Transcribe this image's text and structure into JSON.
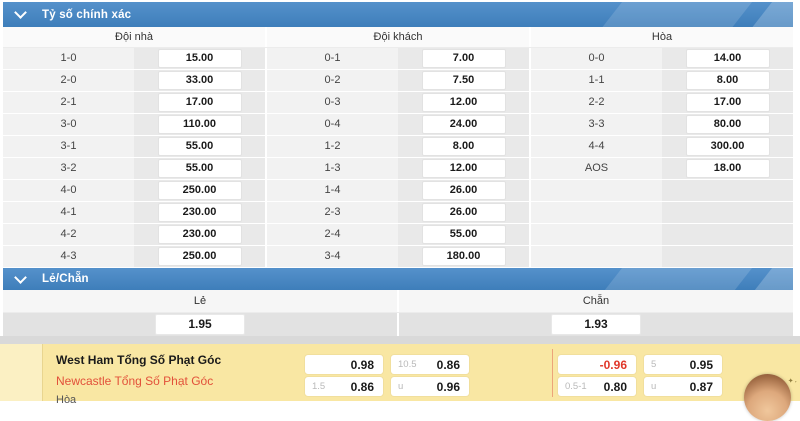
{
  "colors": {
    "header_blue": "#4283c0",
    "panel_yellow": "#f9e7a3",
    "negative_red": "#e0372a",
    "away_team_red": "#e2513a"
  },
  "correct_score": {
    "title": "Tỷ số chính xác",
    "columns": [
      {
        "header": "Đội nhà",
        "rows": [
          {
            "score": "1-0",
            "odds": "15.00"
          },
          {
            "score": "2-0",
            "odds": "33.00"
          },
          {
            "score": "2-1",
            "odds": "17.00"
          },
          {
            "score": "3-0",
            "odds": "110.00"
          },
          {
            "score": "3-1",
            "odds": "55.00"
          },
          {
            "score": "3-2",
            "odds": "55.00"
          },
          {
            "score": "4-0",
            "odds": "250.00"
          },
          {
            "score": "4-1",
            "odds": "230.00"
          },
          {
            "score": "4-2",
            "odds": "230.00"
          },
          {
            "score": "4-3",
            "odds": "250.00"
          }
        ]
      },
      {
        "header": "Đội khách",
        "rows": [
          {
            "score": "0-1",
            "odds": "7.00"
          },
          {
            "score": "0-2",
            "odds": "7.50"
          },
          {
            "score": "0-3",
            "odds": "12.00"
          },
          {
            "score": "0-4",
            "odds": "24.00"
          },
          {
            "score": "1-2",
            "odds": "8.00"
          },
          {
            "score": "1-3",
            "odds": "12.00"
          },
          {
            "score": "1-4",
            "odds": "26.00"
          },
          {
            "score": "2-3",
            "odds": "26.00"
          },
          {
            "score": "2-4",
            "odds": "55.00"
          },
          {
            "score": "3-4",
            "odds": "180.00"
          }
        ]
      },
      {
        "header": "Hòa",
        "rows": [
          {
            "score": "0-0",
            "odds": "14.00"
          },
          {
            "score": "1-1",
            "odds": "8.00"
          },
          {
            "score": "2-2",
            "odds": "17.00"
          },
          {
            "score": "3-3",
            "odds": "80.00"
          },
          {
            "score": "4-4",
            "odds": "300.00"
          },
          {
            "score": "AOS",
            "odds": "18.00"
          }
        ]
      }
    ]
  },
  "odd_even": {
    "title": "Lẻ/Chẵn",
    "options": [
      {
        "label": "Lẻ",
        "odds": "1.95"
      },
      {
        "label": "Chẵn",
        "odds": "1.93"
      }
    ]
  },
  "corners": {
    "home_label": "West Ham Tổng Số Phạt Góc",
    "away_label": "Newcastle Tổng Số Phạt Góc",
    "draw_label": "Hòa",
    "group1": [
      [
        {
          "hcp": "",
          "odds": "0.98"
        },
        {
          "hcp": "10.5",
          "odds": "0.86"
        }
      ],
      [
        {
          "hcp": "1.5",
          "odds": "0.86"
        },
        {
          "hcp": "u",
          "odds": "0.96"
        }
      ]
    ],
    "group2": [
      [
        {
          "hcp": "",
          "odds": "-0.96"
        },
        {
          "hcp": "5",
          "odds": "0.95"
        }
      ],
      [
        {
          "hcp": "0.5-1",
          "odds": "0.80"
        },
        {
          "hcp": "u",
          "odds": "0.87"
        }
      ]
    ]
  }
}
